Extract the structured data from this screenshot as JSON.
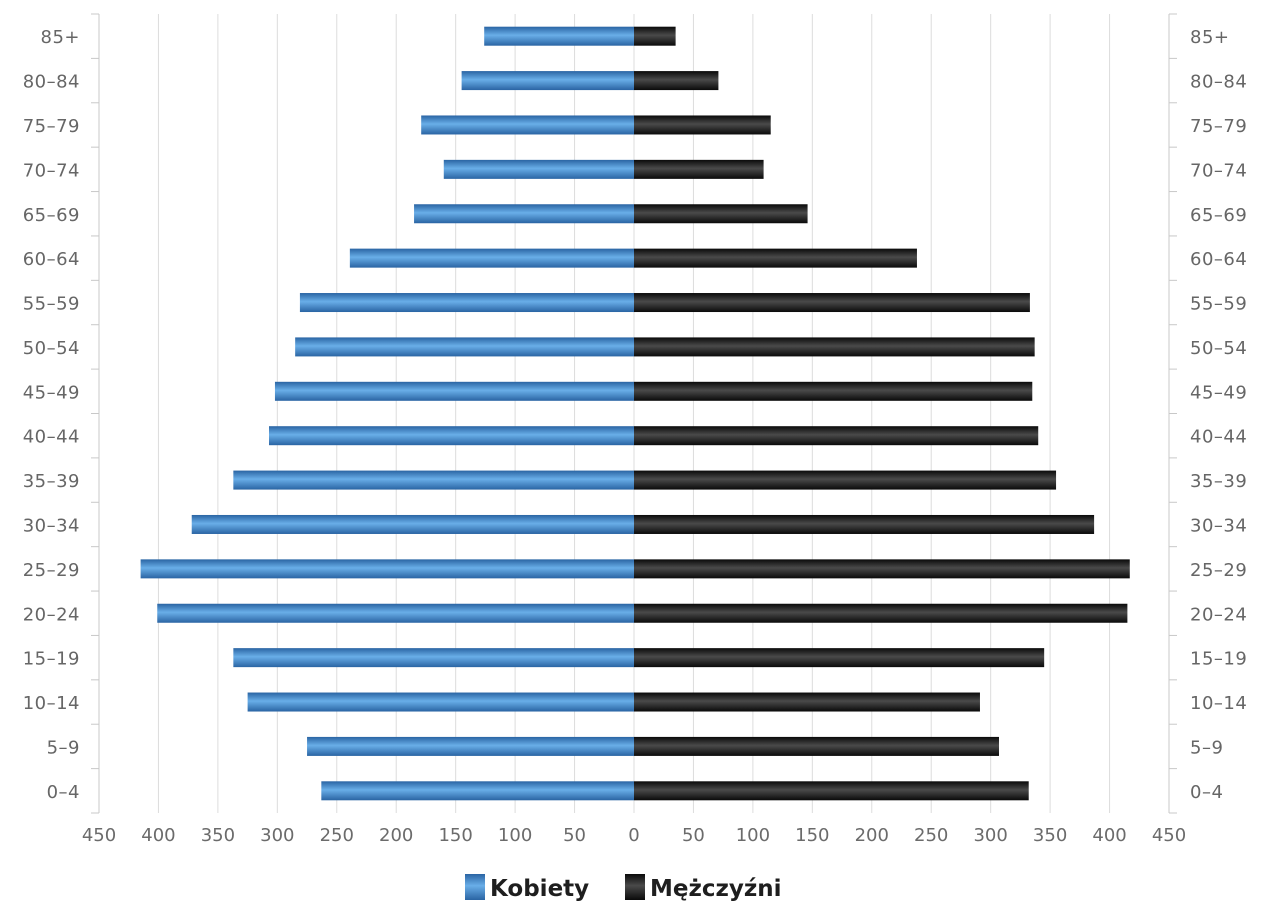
{
  "chart_data": {
    "type": "bar",
    "orientation": "horizontal",
    "layout": "population-pyramid",
    "categories": [
      "0-4",
      "5-9",
      "10-14",
      "15-19",
      "20-24",
      "25-29",
      "30-34",
      "35-39",
      "40-44",
      "45-49",
      "50-54",
      "55-59",
      "60-64",
      "65-69",
      "70-74",
      "75-79",
      "80-84",
      "85+"
    ],
    "category_labels": [
      "0–4",
      "5–9",
      "10–14",
      "15–19",
      "20–24",
      "25–29",
      "30–34",
      "35–39",
      "40–44",
      "45–49",
      "50–54",
      "55–59",
      "60–64",
      "65–69",
      "70–74",
      "75–79",
      "80–84",
      "85+"
    ],
    "series": [
      {
        "name": "Kobiety",
        "side": "left",
        "color": "#3d85c6",
        "values": [
          263,
          275,
          325,
          337,
          401,
          415,
          372,
          337,
          307,
          302,
          285,
          281,
          239,
          185,
          160,
          179,
          145,
          126
        ]
      },
      {
        "name": "Mężczyźni",
        "side": "right",
        "color": "#1f1f1f",
        "values": [
          332,
          307,
          291,
          345,
          415,
          417,
          387,
          355,
          340,
          335,
          337,
          333,
          238,
          146,
          109,
          115,
          71,
          35
        ]
      }
    ],
    "xlim": [
      -450,
      450
    ],
    "x_ticks": [
      -450,
      -400,
      -350,
      -300,
      -250,
      -200,
      -150,
      -100,
      -50,
      0,
      50,
      100,
      150,
      200,
      250,
      300,
      350,
      400,
      450
    ],
    "x_tick_labels": [
      "450",
      "400",
      "350",
      "300",
      "250",
      "200",
      "150",
      "100",
      "50",
      "0",
      "50",
      "100",
      "150",
      "200",
      "250",
      "300",
      "350",
      "400",
      "450"
    ],
    "grid": true,
    "legend": "bottom-center"
  }
}
